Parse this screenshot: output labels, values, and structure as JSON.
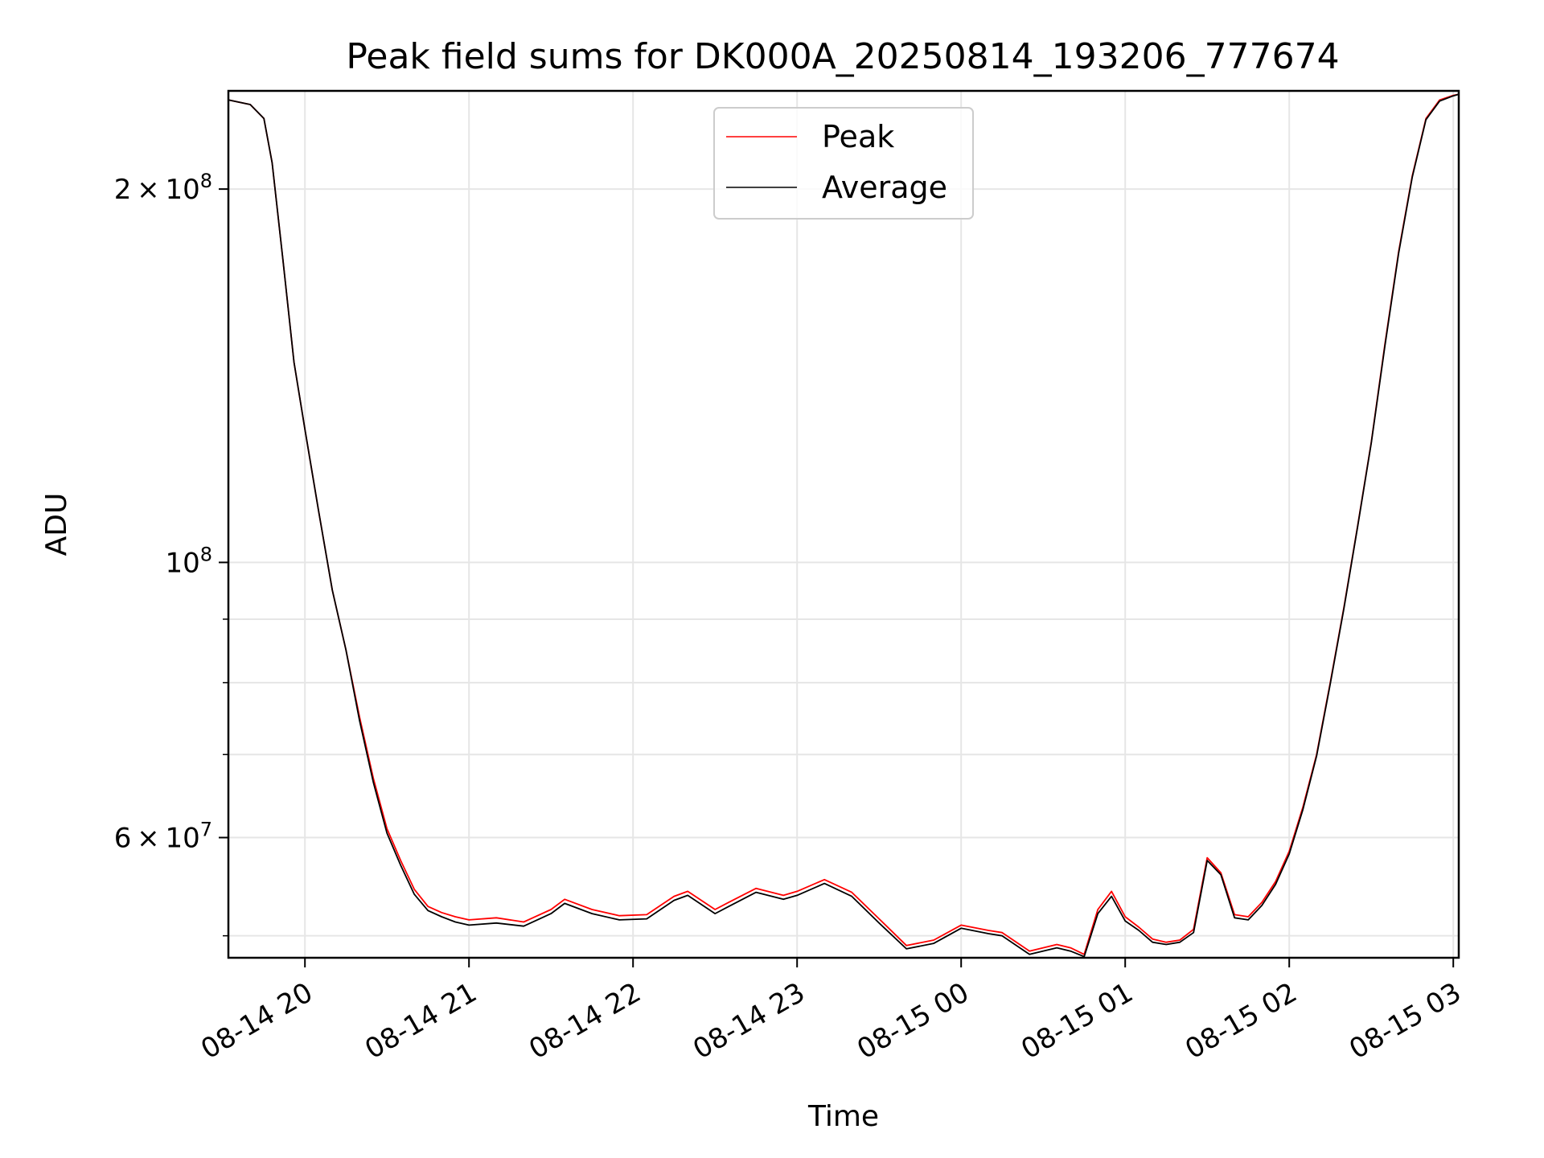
{
  "chart_data": {
    "type": "line",
    "title": "Peak field sums for DK000A_20250814_193206_777674",
    "xlabel": "Time",
    "ylabel": "ADU",
    "y_scale": "log",
    "xlim": [
      "2025-08-14 19:32",
      "2025-08-15 03:02"
    ],
    "ylim": [
      48000000,
      240000000
    ],
    "grid": true,
    "legend": {
      "position": "top-center",
      "entries": [
        "Peak",
        "Average"
      ]
    },
    "x_ticks": [
      {
        "t": "2025-08-14 20:00",
        "label": "08-14 20"
      },
      {
        "t": "2025-08-14 21:00",
        "label": "08-14 21"
      },
      {
        "t": "2025-08-14 22:00",
        "label": "08-14 22"
      },
      {
        "t": "2025-08-14 23:00",
        "label": "08-14 23"
      },
      {
        "t": "2025-08-15 00:00",
        "label": "08-15 00"
      },
      {
        "t": "2025-08-15 01:00",
        "label": "08-15 01"
      },
      {
        "t": "2025-08-15 02:00",
        "label": "08-15 02"
      },
      {
        "t": "2025-08-15 03:00",
        "label": "08-15 03"
      }
    ],
    "y_major_ticks": [
      {
        "v": 60000000,
        "mant": "6",
        "exp": "7"
      },
      {
        "v": 100000000,
        "mant": "",
        "exp": "8"
      },
      {
        "v": 200000000,
        "mant": "2",
        "exp": "8"
      }
    ],
    "y_minor_ticks": [
      50000000,
      70000000,
      80000000,
      90000000
    ],
    "series": [
      {
        "name": "Peak",
        "color": "#ff0000",
        "x": [
          "2025-08-14 19:32",
          "2025-08-14 19:40",
          "2025-08-14 19:45",
          "2025-08-14 19:48",
          "2025-08-14 19:52",
          "2025-08-14 19:56",
          "2025-08-14 20:00",
          "2025-08-14 20:05",
          "2025-08-14 20:10",
          "2025-08-14 20:15",
          "2025-08-14 20:20",
          "2025-08-14 20:25",
          "2025-08-14 20:30",
          "2025-08-14 20:35",
          "2025-08-14 20:40",
          "2025-08-14 20:45",
          "2025-08-14 20:50",
          "2025-08-14 20:55",
          "2025-08-14 21:00",
          "2025-08-14 21:10",
          "2025-08-14 21:20",
          "2025-08-14 21:30",
          "2025-08-14 21:35",
          "2025-08-14 21:45",
          "2025-08-14 21:55",
          "2025-08-14 22:05",
          "2025-08-14 22:15",
          "2025-08-14 22:20",
          "2025-08-14 22:30",
          "2025-08-14 22:35",
          "2025-08-14 22:45",
          "2025-08-14 22:55",
          "2025-08-14 23:00",
          "2025-08-14 23:10",
          "2025-08-14 23:20",
          "2025-08-14 23:30",
          "2025-08-14 23:40",
          "2025-08-14 23:50",
          "2025-08-15 00:00",
          "2025-08-15 00:10",
          "2025-08-15 00:15",
          "2025-08-15 00:25",
          "2025-08-15 00:35",
          "2025-08-15 00:40",
          "2025-08-15 00:45",
          "2025-08-15 00:50",
          "2025-08-15 00:55",
          "2025-08-15 01:00",
          "2025-08-15 01:05",
          "2025-08-15 01:10",
          "2025-08-15 01:15",
          "2025-08-15 01:20",
          "2025-08-15 01:25",
          "2025-08-15 01:30",
          "2025-08-15 01:35",
          "2025-08-15 01:40",
          "2025-08-15 01:45",
          "2025-08-15 01:50",
          "2025-08-15 01:55",
          "2025-08-15 02:00",
          "2025-08-15 02:05",
          "2025-08-15 02:10",
          "2025-08-15 02:15",
          "2025-08-15 02:20",
          "2025-08-15 02:25",
          "2025-08-15 02:30",
          "2025-08-15 02:35",
          "2025-08-15 02:40",
          "2025-08-15 02:45",
          "2025-08-15 02:50",
          "2025-08-15 02:55",
          "2025-08-15 03:00",
          "2025-08-15 03:02"
        ],
        "y": [
          236000000,
          234000000,
          228000000,
          210000000,
          175000000,
          145000000,
          128000000,
          110000000,
          95000000,
          85000000,
          75000000,
          67000000,
          61000000,
          57500000,
          54500000,
          52800000,
          52200000,
          51800000,
          51500000,
          51700000,
          51300000,
          52500000,
          53500000,
          52500000,
          51900000,
          52000000,
          53800000,
          54300000,
          52500000,
          53200000,
          54600000,
          53900000,
          54300000,
          55500000,
          54200000,
          51600000,
          49100000,
          49600000,
          51000000,
          50500000,
          50300000,
          48600000,
          49200000,
          48900000,
          48300000,
          52500000,
          54300000,
          51800000,
          50800000,
          49700000,
          49400000,
          49600000,
          50600000,
          57800000,
          56200000,
          52000000,
          51800000,
          53200000,
          55300000,
          58500000,
          63500000,
          70000000,
          80000000,
          92000000,
          107000000,
          125000000,
          150000000,
          178000000,
          205000000,
          228000000,
          236000000,
          238000000,
          238500000
        ]
      },
      {
        "name": "Average",
        "color": "#000000",
        "x": [
          "2025-08-14 19:32",
          "2025-08-14 19:40",
          "2025-08-14 19:45",
          "2025-08-14 19:48",
          "2025-08-14 19:52",
          "2025-08-14 19:56",
          "2025-08-14 20:00",
          "2025-08-14 20:05",
          "2025-08-14 20:10",
          "2025-08-14 20:15",
          "2025-08-14 20:20",
          "2025-08-14 20:25",
          "2025-08-14 20:30",
          "2025-08-14 20:35",
          "2025-08-14 20:40",
          "2025-08-14 20:45",
          "2025-08-14 20:50",
          "2025-08-14 20:55",
          "2025-08-14 21:00",
          "2025-08-14 21:10",
          "2025-08-14 21:20",
          "2025-08-14 21:30",
          "2025-08-14 21:35",
          "2025-08-14 21:45",
          "2025-08-14 21:55",
          "2025-08-14 22:05",
          "2025-08-14 22:15",
          "2025-08-14 22:20",
          "2025-08-14 22:30",
          "2025-08-14 22:35",
          "2025-08-14 22:45",
          "2025-08-14 22:55",
          "2025-08-14 23:00",
          "2025-08-14 23:10",
          "2025-08-14 23:20",
          "2025-08-14 23:30",
          "2025-08-14 23:40",
          "2025-08-14 23:50",
          "2025-08-15 00:00",
          "2025-08-15 00:10",
          "2025-08-15 00:15",
          "2025-08-15 00:25",
          "2025-08-15 00:35",
          "2025-08-15 00:40",
          "2025-08-15 00:45",
          "2025-08-15 00:50",
          "2025-08-15 00:55",
          "2025-08-15 01:00",
          "2025-08-15 01:05",
          "2025-08-15 01:10",
          "2025-08-15 01:15",
          "2025-08-15 01:20",
          "2025-08-15 01:25",
          "2025-08-15 01:30",
          "2025-08-15 01:35",
          "2025-08-15 01:40",
          "2025-08-15 01:45",
          "2025-08-15 01:50",
          "2025-08-15 01:55",
          "2025-08-15 02:00",
          "2025-08-15 02:05",
          "2025-08-15 02:10",
          "2025-08-15 02:15",
          "2025-08-15 02:20",
          "2025-08-15 02:25",
          "2025-08-15 02:30",
          "2025-08-15 02:35",
          "2025-08-15 02:40",
          "2025-08-15 02:45",
          "2025-08-15 02:50",
          "2025-08-15 02:55",
          "2025-08-15 03:00",
          "2025-08-15 03:02"
        ],
        "y": [
          236000000,
          234000000,
          228000000,
          210000000,
          175000000,
          145000000,
          128000000,
          110000000,
          95000000,
          85000000,
          74500000,
          66500000,
          60500000,
          57000000,
          54000000,
          52400000,
          51800000,
          51300000,
          51000000,
          51200000,
          50900000,
          52100000,
          53100000,
          52100000,
          51500000,
          51600000,
          53400000,
          53900000,
          52100000,
          52800000,
          54200000,
          53500000,
          53900000,
          55100000,
          53800000,
          51200000,
          48800000,
          49300000,
          50700000,
          50200000,
          50000000,
          48300000,
          48900000,
          48600000,
          48100000,
          52100000,
          53800000,
          51400000,
          50500000,
          49400000,
          49200000,
          49400000,
          50300000,
          57500000,
          56000000,
          51700000,
          51500000,
          52900000,
          55000000,
          58200000,
          63200000,
          69800000,
          79800000,
          91800000,
          106800000,
          124800000,
          149500000,
          177500000,
          204500000,
          227500000,
          235500000,
          237800000,
          238500000
        ]
      }
    ]
  }
}
